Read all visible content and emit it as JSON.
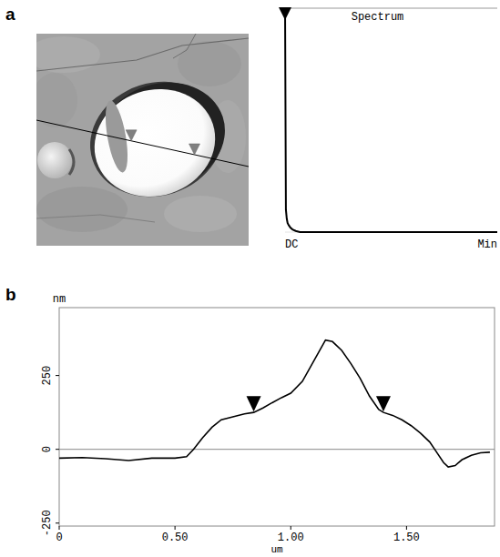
{
  "chart_data": [
    {
      "type": "line",
      "panel_label": "a",
      "title": "Spectrum",
      "x": [
        0,
        0.004,
        0.008,
        0.012,
        0.018,
        0.025,
        0.035,
        0.05,
        0.07,
        1
      ],
      "values": [
        1,
        0.1,
        0.06,
        0.04,
        0.03,
        0.02,
        0.012,
        0.005,
        0,
        0
      ],
      "xlim": [
        0,
        1
      ],
      "ylim": [
        0,
        1
      ],
      "xticks": [
        {
          "value": 0,
          "label": "DC"
        },
        {
          "value": 1,
          "label": "Min"
        }
      ],
      "tick_labels": "x",
      "cursors_x": [
        0
      ]
    },
    {
      "type": "line",
      "panel_label": "b",
      "y_label": "nm",
      "x_label": "um",
      "x": [
        0,
        0.1,
        0.2,
        0.3,
        0.4,
        0.5,
        0.55,
        0.58,
        0.62,
        0.66,
        0.7,
        0.75,
        0.8,
        0.84,
        0.88,
        0.92,
        0.96,
        1.0,
        1.05,
        1.1,
        1.15,
        1.18,
        1.22,
        1.26,
        1.3,
        1.34,
        1.38,
        1.4,
        1.44,
        1.48,
        1.52,
        1.56,
        1.6,
        1.63,
        1.66,
        1.68,
        1.71,
        1.74,
        1.78,
        1.82,
        1.86
      ],
      "values": [
        -30,
        -28,
        -32,
        -38,
        -30,
        -30,
        -25,
        0,
        40,
        75,
        100,
        110,
        120,
        125,
        140,
        158,
        175,
        190,
        230,
        300,
        370,
        365,
        335,
        290,
        240,
        180,
        135,
        125,
        115,
        100,
        80,
        55,
        25,
        -10,
        -45,
        -60,
        -55,
        -35,
        -20,
        -12,
        -10
      ],
      "xlim": [
        0,
        1.88
      ],
      "ylim": [
        -260,
        480
      ],
      "xticks": [
        0,
        {
          "value": 0.5,
          "label": "0.50"
        },
        {
          "value": 1,
          "label": "1.00"
        },
        {
          "value": 1.5,
          "label": "1.50"
        }
      ],
      "yticks": [
        -250,
        0,
        250
      ],
      "reference_line": 0,
      "grid": false,
      "color": "#000000",
      "cursors_x": [
        0.84,
        1.4
      ]
    }
  ]
}
